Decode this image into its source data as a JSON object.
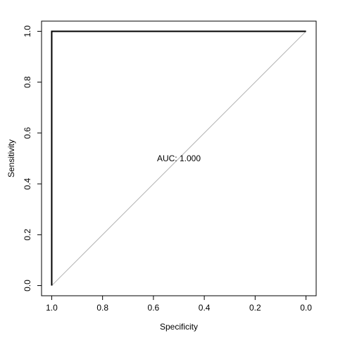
{
  "chart_data": {
    "type": "line",
    "xlabel": "Specificity",
    "ylabel": "Sensitivity",
    "xlim": [
      1.04,
      -0.04
    ],
    "ylim": [
      -0.04,
      1.04
    ],
    "x_reversed": true,
    "x_ticks": [
      1.0,
      0.8,
      0.6,
      0.4,
      0.2,
      0.0
    ],
    "x_tick_labels": [
      "1.0",
      "0.8",
      "0.6",
      "0.4",
      "0.2",
      "0.0"
    ],
    "y_ticks": [
      0.0,
      0.2,
      0.4,
      0.6,
      0.8,
      1.0
    ],
    "y_tick_labels": [
      "0.0",
      "0.2",
      "0.4",
      "0.6",
      "0.8",
      "1.0"
    ],
    "grid": false,
    "series": [
      {
        "specificity": [
          1.0,
          1.0,
          0.0
        ],
        "sensitivity": [
          0.0,
          1.0,
          1.0
        ],
        "color": "#000000"
      }
    ],
    "reference_line": {
      "specificity": [
        1.0,
        0.0
      ],
      "sensitivity": [
        0.0,
        1.0
      ],
      "color": "#b3b3b3"
    },
    "annotations": [
      {
        "text": "AUC: 1.000",
        "x": 0.5,
        "y": 0.5
      }
    ]
  }
}
